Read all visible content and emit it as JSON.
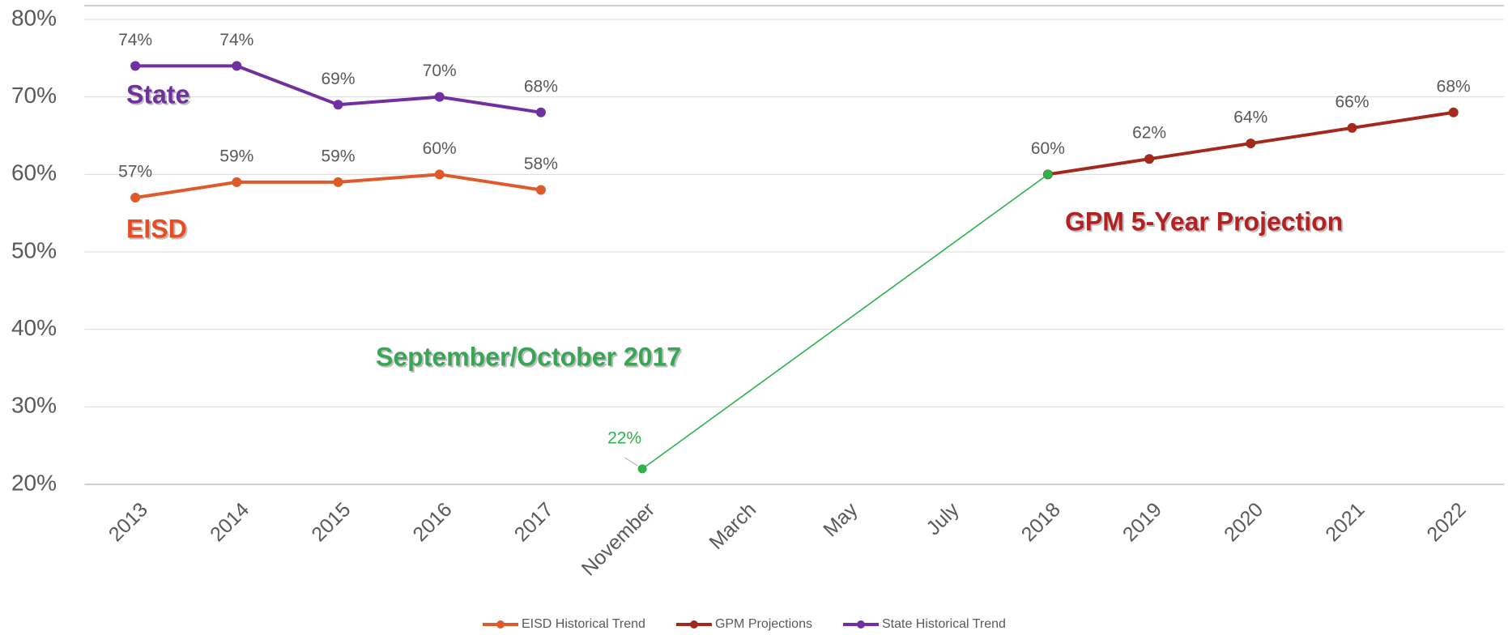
{
  "chart_data": {
    "type": "line",
    "categories": [
      "2013",
      "2014",
      "2015",
      "2016",
      "2017",
      "November",
      "March",
      "May",
      "July",
      "2018",
      "2019",
      "2020",
      "2021",
      "2022"
    ],
    "series": [
      {
        "name": "EISD Historical Trend",
        "color": "#e0592a",
        "values": [
          57,
          59,
          59,
          60,
          58,
          null,
          null,
          null,
          null,
          null,
          null,
          null,
          null,
          null
        ],
        "value_labels": [
          "57%",
          "59%",
          "59%",
          "60%",
          "58%",
          null,
          null,
          null,
          null,
          null,
          null,
          null,
          null,
          null
        ]
      },
      {
        "name": "GPM Projections",
        "color": "#a3291c",
        "values": [
          null,
          null,
          null,
          null,
          null,
          null,
          null,
          null,
          null,
          60,
          62,
          64,
          66,
          68
        ],
        "value_labels": [
          null,
          null,
          null,
          null,
          null,
          null,
          null,
          null,
          null,
          "60%",
          "62%",
          "64%",
          "66%",
          "68%"
        ]
      },
      {
        "name": "State Historical Trend",
        "color": "#7030a0",
        "values": [
          74,
          74,
          69,
          70,
          68,
          null,
          null,
          null,
          null,
          null,
          null,
          null,
          null,
          null
        ],
        "value_labels": [
          "74%",
          "74%",
          "69%",
          "70%",
          "68%",
          null,
          null,
          null,
          null,
          null,
          null,
          null,
          null,
          null
        ]
      },
      {
        "color": "#2db34a",
        "values": [
          null,
          null,
          null,
          null,
          null,
          22,
          null,
          null,
          null,
          60,
          null,
          null,
          null,
          null
        ],
        "value_labels": [
          null,
          null,
          null,
          null,
          null,
          "22%",
          null,
          null,
          null,
          null,
          null,
          null,
          null,
          null
        ]
      }
    ],
    "ylim": [
      20,
      80
    ],
    "yticks": [
      {
        "value": 20,
        "label": "20%"
      },
      {
        "value": 30,
        "label": "30%"
      },
      {
        "value": 40,
        "label": "40%"
      },
      {
        "value": 50,
        "label": "50%"
      },
      {
        "value": 60,
        "label": "60%"
      },
      {
        "value": 70,
        "label": "70%"
      },
      {
        "value": 80,
        "label": "80%"
      }
    ],
    "grid": true,
    "legend": "bottom",
    "annotations": [
      {
        "text": "State",
        "color": "#7030a0"
      },
      {
        "text": "EISD",
        "color": "#e84c22"
      },
      {
        "text": "September/October 2017",
        "color": "#3aa655"
      },
      {
        "text": "GPM 5-Year Projection",
        "color": "#b22222"
      }
    ]
  }
}
